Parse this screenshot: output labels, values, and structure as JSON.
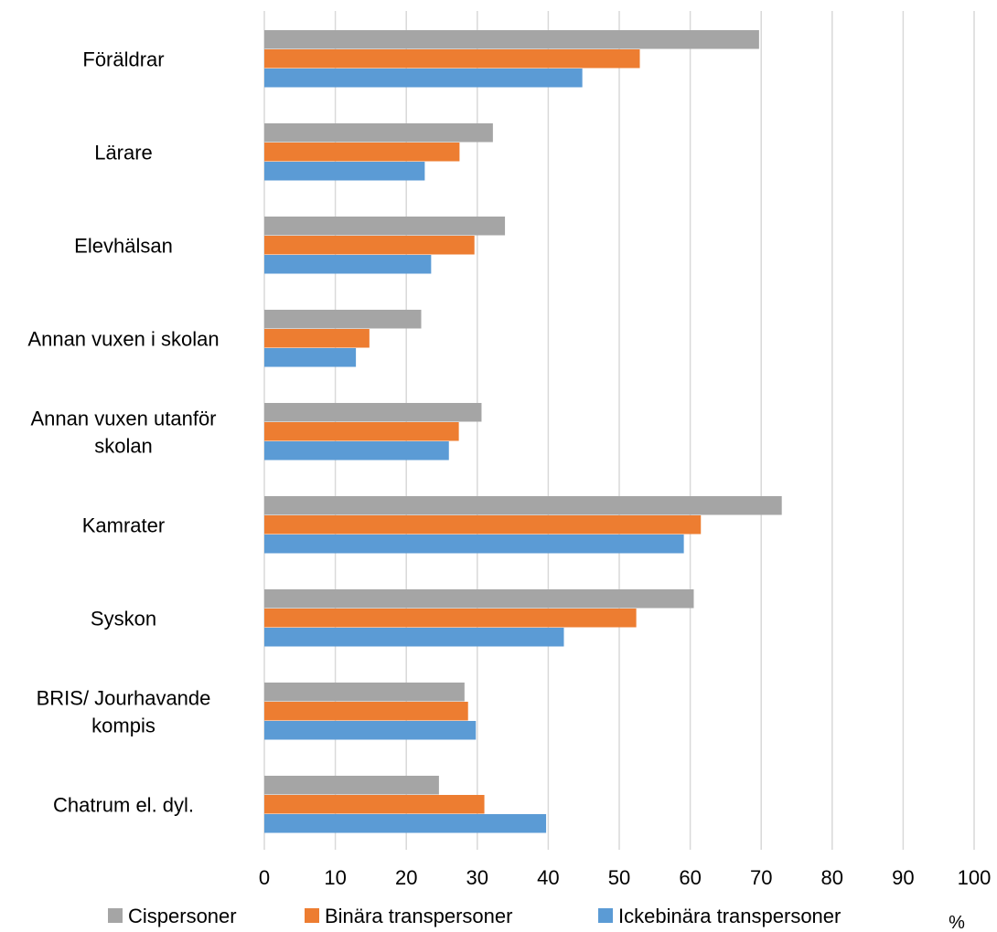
{
  "chart_data": {
    "type": "bar",
    "orientation": "horizontal",
    "categories": [
      [
        "Föräldrar"
      ],
      [
        "Lärare"
      ],
      [
        "Elevhälsan"
      ],
      [
        "Annan vuxen i skolan"
      ],
      [
        "Annan vuxen utanför",
        "skolan"
      ],
      [
        "Kamrater"
      ],
      [
        "Syskon"
      ],
      [
        "BRIS/ Jourhavande",
        "kompis"
      ],
      [
        "Chatrum el. dyl."
      ]
    ],
    "series": [
      {
        "name": "Cispersoner",
        "color": "#a5a5a5",
        "values": [
          69.7,
          32.2,
          33.9,
          22.1,
          30.6,
          72.9,
          60.5,
          28.2,
          24.6
        ]
      },
      {
        "name": "Binära transpersoner",
        "color": "#ed7d31",
        "values": [
          52.9,
          27.5,
          29.6,
          14.8,
          27.4,
          61.5,
          52.4,
          28.7,
          31.0
        ]
      },
      {
        "name": "Ickebinära transpersoner",
        "color": "#5b9bd5",
        "values": [
          44.8,
          22.6,
          23.5,
          12.9,
          26.0,
          59.1,
          42.2,
          29.8,
          39.7
        ]
      }
    ],
    "xlim": [
      0,
      100
    ],
    "xticks": [
      0,
      10,
      20,
      30,
      40,
      50,
      60,
      70,
      80,
      90,
      100
    ],
    "xunit": "%",
    "grid": true,
    "legend_position": "bottom"
  }
}
